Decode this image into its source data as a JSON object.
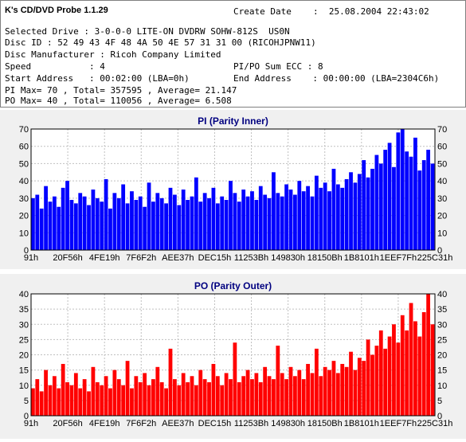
{
  "header": {
    "app_title": "K's CD/DVD Probe 1.1.29",
    "create_date_label": "Create Date",
    "create_date_value": ":  25.08.2004 22:43:02",
    "selected_drive": "Selected Drive : 3-0-0-0 LITE-ON DVDRW SOHW-812S  US0N",
    "disc_id": "Disc ID : 52 49 43 4F 48 4A 50 4E 57 31 31 00 (RICOHJPNW11)",
    "disc_manufacturer": "Disc Manufacturer : Ricoh Company Limited",
    "speed": "Speed           : 4",
    "pipo_sum_ecc": "PI/PO Sum ECC : 8",
    "start_address": "Start Address   : 00:02:00 (LBA=0h)",
    "end_address": "End Address    : 00:00:00 (LBA=2304C6h)",
    "pi_stats": "PI Max= 70 , Total= 357595 , Average= 21.147",
    "po_stats": "PO Max= 40 , Total= 110056 , Average= 6.508"
  },
  "chart_data": [
    {
      "type": "bar",
      "title": "PI (Parity Inner)",
      "color": "#0000ff",
      "ylim": [
        0,
        70
      ],
      "yticks": [
        0,
        10,
        20,
        30,
        40,
        50,
        60,
        70
      ],
      "xticks": [
        "91h",
        "20F56h",
        "4FE19h",
        "7F6F2h",
        "AEE37h",
        "DEC15h",
        "11253Bh",
        "149830h",
        "18150Bh",
        "1B8101h",
        "1EEF7Fh",
        "225C31h"
      ],
      "series": [
        {
          "values": [
            30,
            32,
            24,
            37,
            28,
            31,
            25,
            36,
            40,
            29,
            27,
            33,
            31,
            26,
            35,
            30,
            28,
            41,
            24,
            33,
            30,
            38,
            27,
            34,
            29,
            31,
            25,
            39,
            28,
            33,
            30,
            27,
            36,
            32,
            26,
            35,
            29,
            31,
            42,
            28,
            33,
            30,
            36,
            27,
            31,
            29,
            40,
            33,
            28,
            35,
            31,
            34,
            29,
            37,
            32,
            30,
            45,
            33,
            31,
            38,
            35,
            32,
            40,
            34,
            37,
            31,
            43,
            36,
            39,
            34,
            47,
            38,
            36,
            41,
            45,
            39,
            44,
            52,
            42,
            47,
            55,
            50,
            58,
            62,
            48,
            68,
            70,
            57,
            54,
            65,
            46,
            52,
            58,
            50
          ]
        }
      ],
      "grid": true
    },
    {
      "type": "bar",
      "title": "PO (Parity Outer)",
      "color": "#ff0000",
      "ylim": [
        0,
        40
      ],
      "yticks": [
        0,
        5,
        10,
        15,
        20,
        25,
        30,
        35,
        40
      ],
      "xticks": [
        "91h",
        "20F56h",
        "4FE19h",
        "7F6F2h",
        "AEE37h",
        "DEC15h",
        "11253Bh",
        "149830h",
        "18150Bh",
        "1B8101h",
        "1EEF7Fh",
        "225C31h"
      ],
      "series": [
        {
          "values": [
            9,
            12,
            8,
            15,
            10,
            13,
            9,
            17,
            11,
            10,
            14,
            9,
            12,
            8,
            16,
            11,
            10,
            13,
            9,
            15,
            12,
            10,
            18,
            9,
            13,
            11,
            14,
            10,
            12,
            16,
            11,
            9,
            22,
            12,
            10,
            14,
            11,
            13,
            10,
            15,
            12,
            11,
            17,
            13,
            10,
            14,
            12,
            24,
            11,
            13,
            15,
            12,
            14,
            11,
            16,
            13,
            12,
            23,
            14,
            12,
            16,
            13,
            15,
            12,
            17,
            14,
            22,
            13,
            16,
            15,
            18,
            14,
            17,
            16,
            21,
            15,
            19,
            18,
            25,
            20,
            23,
            28,
            22,
            26,
            30,
            24,
            33,
            28,
            37,
            31,
            26,
            34,
            40,
            30
          ]
        }
      ],
      "grid": true
    }
  ]
}
